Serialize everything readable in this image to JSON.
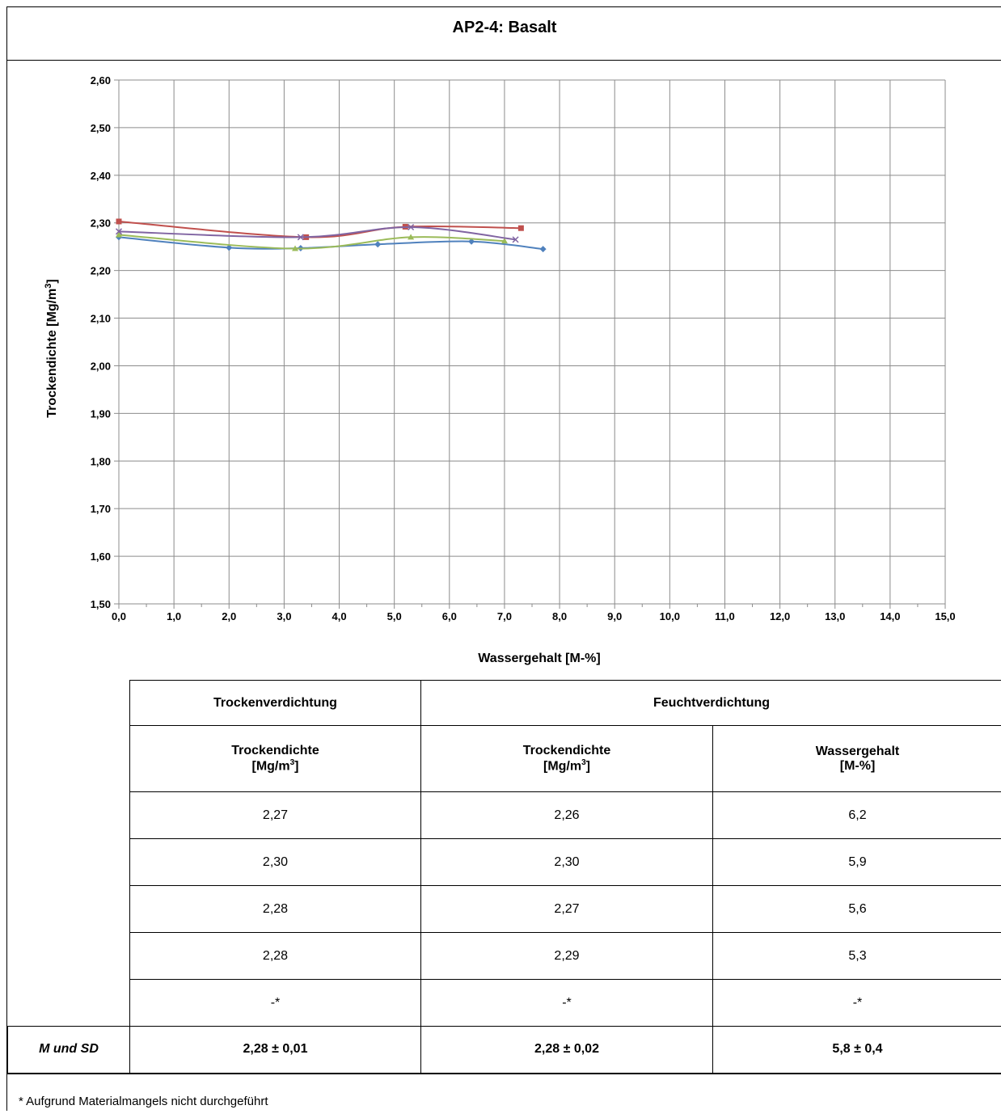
{
  "chart_data": {
    "type": "line",
    "title": "AP2-4: Basalt",
    "xlabel": "Wassergehalt [M-%]",
    "ylabel_main": "Trockendichte [Mg/m",
    "ylabel_sup": "3",
    "ylabel_end": "]",
    "xlim": [
      0,
      15
    ],
    "ylim": [
      1.5,
      2.6
    ],
    "x_ticks": [
      "0,0",
      "1,0",
      "2,0",
      "3,0",
      "4,0",
      "5,0",
      "6,0",
      "7,0",
      "8,0",
      "9,0",
      "10,0",
      "11,0",
      "12,0",
      "13,0",
      "14,0",
      "15,0"
    ],
    "y_ticks": [
      "1,50",
      "1,60",
      "1,70",
      "1,80",
      "1,90",
      "2,00",
      "2,10",
      "2,20",
      "2,30",
      "2,40",
      "2,50",
      "2,60"
    ],
    "grid": true,
    "series": [
      {
        "color": "#4f81bd",
        "marker": "diamond",
        "x": [
          0.0,
          2.0,
          3.3,
          4.7,
          6.4,
          7.7
        ],
        "y": [
          2.27,
          2.248,
          2.247,
          2.255,
          2.261,
          2.245
        ]
      },
      {
        "color": "#c0504d",
        "marker": "square",
        "x": [
          0.0,
          3.4,
          5.2,
          7.3
        ],
        "y": [
          2.303,
          2.27,
          2.292,
          2.289
        ]
      },
      {
        "color": "#9bbb59",
        "marker": "triangle",
        "x": [
          0.0,
          3.2,
          5.3,
          7.0
        ],
        "y": [
          2.275,
          2.246,
          2.27,
          2.262
        ]
      },
      {
        "color": "#8064a2",
        "marker": "x",
        "x": [
          0.0,
          3.3,
          5.3,
          7.2
        ],
        "y": [
          2.282,
          2.27,
          2.291,
          2.265
        ]
      }
    ]
  },
  "table": {
    "group_trocken": "Trockenverdichtung",
    "group_feucht": "Feuchtverdichtung",
    "col_trockendichte": "Trockendichte",
    "col_trockendichte_unit_a": "[Mg/m",
    "col_trockendichte_unit_sup": "3",
    "col_trockendichte_unit_b": "]",
    "col_wassergehalt": "Wassergehalt",
    "col_wassergehalt_unit": "[M-%]",
    "rows": [
      [
        "2,27",
        "2,26",
        "6,2"
      ],
      [
        "2,30",
        "2,30",
        "5,9"
      ],
      [
        "2,28",
        "2,27",
        "5,6"
      ],
      [
        "2,28",
        "2,29",
        "5,3"
      ],
      [
        "-*",
        "-*",
        "-*"
      ]
    ],
    "summary_label": "M und SD",
    "summary": [
      "2,28 ± 0,01",
      "2,28 ± 0,02",
      "5,8 ± 0,4"
    ]
  },
  "footnote": "* Aufgrund Materialmangels nicht durchgeführt"
}
